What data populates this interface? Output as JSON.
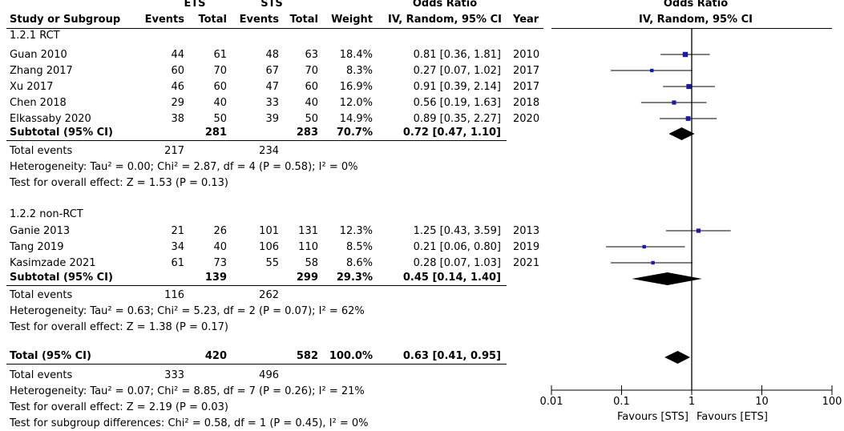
{
  "header": {
    "ets": "ETS",
    "sts": "STS",
    "study_or_subgroup": "Study or Subgroup",
    "events1": "Events",
    "total1": "Total",
    "events2": "Events",
    "total2": "Total",
    "weight": "Weight",
    "or_title": "Odds Ratio",
    "or_method": "IV, Random, 95% CI",
    "year": "Year",
    "plot_title": "Odds Ratio",
    "plot_method": "IV, Random, 95% CI"
  },
  "groups": [
    {
      "name": "1.2.1 RCT",
      "studies": [
        {
          "study": "Guan 2010",
          "e1": "44",
          "t1": "61",
          "e2": "48",
          "t2": "63",
          "weight": "18.4%",
          "ci": "0.81 [0.36, 1.81]",
          "year": "2010"
        },
        {
          "study": "Zhang 2017",
          "e1": "60",
          "t1": "70",
          "e2": "67",
          "t2": "70",
          "weight": "8.3%",
          "ci": "0.27 [0.07, 1.02]",
          "year": "2017"
        },
        {
          "study": "Xu 2017",
          "e1": "46",
          "t1": "60",
          "e2": "47",
          "t2": "60",
          "weight": "16.9%",
          "ci": "0.91 [0.39, 2.14]",
          "year": "2017"
        },
        {
          "study": "Chen 2018",
          "e1": "29",
          "t1": "40",
          "e2": "33",
          "t2": "40",
          "weight": "12.0%",
          "ci": "0.56 [0.19, 1.63]",
          "year": "2018"
        },
        {
          "study": "Elkassaby 2020",
          "e1": "38",
          "t1": "50",
          "e2": "39",
          "t2": "50",
          "weight": "14.9%",
          "ci": "0.89 [0.35, 2.27]",
          "year": "2020"
        }
      ],
      "subtotal": {
        "label": "Subtotal (95% CI)",
        "t1": "281",
        "t2": "283",
        "weight": "70.7%",
        "ci": "0.72 [0.47, 1.10]"
      },
      "total_events": {
        "label": "Total events",
        "e1": "217",
        "e2": "234"
      },
      "heterogeneity": "Heterogeneity: Tau² = 0.00; Chi² = 2.87, df = 4 (P = 0.58); I² = 0%",
      "overall": "Test for overall effect: Z = 1.53 (P = 0.13)"
    },
    {
      "name": "1.2.2 non-RCT",
      "studies": [
        {
          "study": "Ganie 2013",
          "e1": "21",
          "t1": "26",
          "e2": "101",
          "t2": "131",
          "weight": "12.3%",
          "ci": "1.25 [0.43, 3.59]",
          "year": "2013"
        },
        {
          "study": "Tang 2019",
          "e1": "34",
          "t1": "40",
          "e2": "106",
          "t2": "110",
          "weight": "8.5%",
          "ci": "0.21 [0.06, 0.80]",
          "year": "2019"
        },
        {
          "study": "Kasimzade 2021",
          "e1": "61",
          "t1": "73",
          "e2": "55",
          "t2": "58",
          "weight": "8.6%",
          "ci": "0.28 [0.07, 1.03]",
          "year": "2021"
        }
      ],
      "subtotal": {
        "label": "Subtotal (95% CI)",
        "t1": "139",
        "t2": "299",
        "weight": "29.3%",
        "ci": "0.45 [0.14, 1.40]"
      },
      "total_events": {
        "label": "Total events",
        "e1": "116",
        "e2": "262"
      },
      "heterogeneity": "Heterogeneity: Tau² = 0.63; Chi² = 5.23, df = 2 (P = 0.07); I² = 62%",
      "overall": "Test for overall effect: Z = 1.38 (P = 0.17)"
    }
  ],
  "total": {
    "label": "Total (95% CI)",
    "t1": "420",
    "t2": "582",
    "weight": "100.0%",
    "ci": "0.63 [0.41, 0.95]",
    "total_events": {
      "label": "Total events",
      "e1": "333",
      "e2": "496"
    },
    "heterogeneity": "Heterogeneity: Tau² = 0.07; Chi² = 8.85, df = 7 (P = 0.26); I² = 21%",
    "overall": "Test for overall effect: Z = 2.19 (P = 0.03)",
    "subgroup": "Test for subgroup differences: Chi² = 0.58, df = 1 (P = 0.45), I² = 0%"
  },
  "axis": {
    "ticks": [
      0.01,
      0.1,
      1,
      10,
      100
    ],
    "tick_labels": [
      "0.01",
      "0.1",
      "1",
      "10",
      "100"
    ],
    "favours_left": "Favours [STS]",
    "favours_right": "Favours [ETS]"
  },
  "colors": {
    "study_marker": "#1a1aa6",
    "diamond": "#000000",
    "line": "#000000"
  },
  "chart_data": {
    "type": "forest",
    "scale": "log",
    "xlim": [
      0.01,
      100
    ],
    "reference_line": 1,
    "series": [
      {
        "label": "Guan 2010",
        "or": 0.81,
        "lo": 0.36,
        "hi": 1.81,
        "weight": 18.4
      },
      {
        "label": "Zhang 2017",
        "or": 0.27,
        "lo": 0.07,
        "hi": 1.02,
        "weight": 8.3
      },
      {
        "label": "Xu 2017",
        "or": 0.91,
        "lo": 0.39,
        "hi": 2.14,
        "weight": 16.9
      },
      {
        "label": "Chen 2018",
        "or": 0.56,
        "lo": 0.19,
        "hi": 1.63,
        "weight": 12.0
      },
      {
        "label": "Elkassaby 2020",
        "or": 0.89,
        "lo": 0.35,
        "hi": 2.27,
        "weight": 14.9
      },
      {
        "label": "Subtotal (95% CI)",
        "or": 0.72,
        "lo": 0.47,
        "hi": 1.1,
        "diamond": true
      },
      {
        "label": "Ganie 2013",
        "or": 1.25,
        "lo": 0.43,
        "hi": 3.59,
        "weight": 12.3
      },
      {
        "label": "Tang 2019",
        "or": 0.21,
        "lo": 0.06,
        "hi": 0.8,
        "weight": 8.5
      },
      {
        "label": "Kasimzade 2021",
        "or": 0.28,
        "lo": 0.07,
        "hi": 1.03,
        "weight": 8.6
      },
      {
        "label": "Subtotal (95% CI)",
        "or": 0.45,
        "lo": 0.14,
        "hi": 1.4,
        "diamond": true
      },
      {
        "label": "Total (95% CI)",
        "or": 0.63,
        "lo": 0.41,
        "hi": 0.95,
        "diamond": true
      }
    ]
  }
}
